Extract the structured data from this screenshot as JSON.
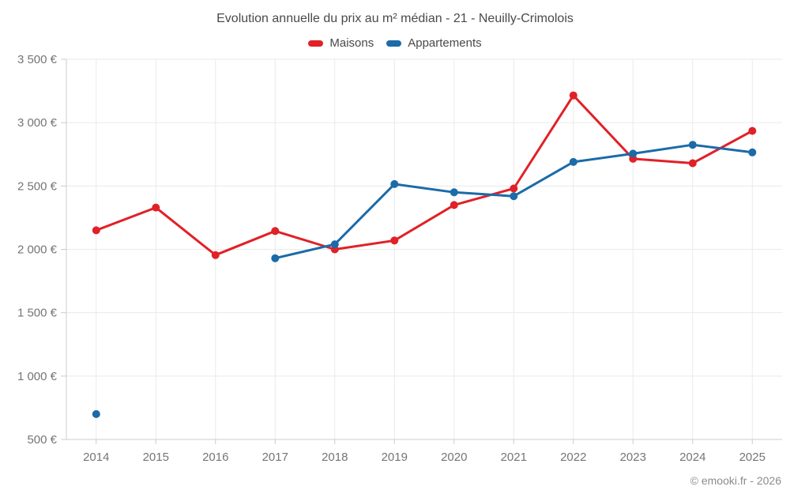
{
  "chart_data": {
    "type": "line",
    "title": "Evolution annuelle du prix au m² médian - 21 - Neuilly-Crimolois",
    "x": [
      "2014",
      "2015",
      "2016",
      "2017",
      "2018",
      "2019",
      "2020",
      "2021",
      "2022",
      "2023",
      "2024",
      "2025"
    ],
    "series": [
      {
        "name": "Maisons",
        "color": "#e02127",
        "values": [
          2150,
          2330,
          1955,
          2145,
          2000,
          2070,
          2350,
          2480,
          3215,
          2715,
          2680,
          2935
        ]
      },
      {
        "name": "Appartements",
        "color": "#1b6ba8",
        "values": [
          700,
          null,
          null,
          1930,
          2040,
          2515,
          2450,
          2420,
          2690,
          2755,
          2825,
          2765
        ]
      }
    ],
    "ylim": [
      500,
      3500
    ],
    "ytick_step": 500,
    "ytick_labels": [
      "500 €",
      "1 000 €",
      "1 500 €",
      "2 000 €",
      "2 500 €",
      "3 000 €",
      "3 500 €"
    ],
    "grid": true,
    "legend_position": "top",
    "xlabel": "",
    "ylabel": ""
  },
  "footer": {
    "copyright": "© emooki.fr - 2026"
  }
}
